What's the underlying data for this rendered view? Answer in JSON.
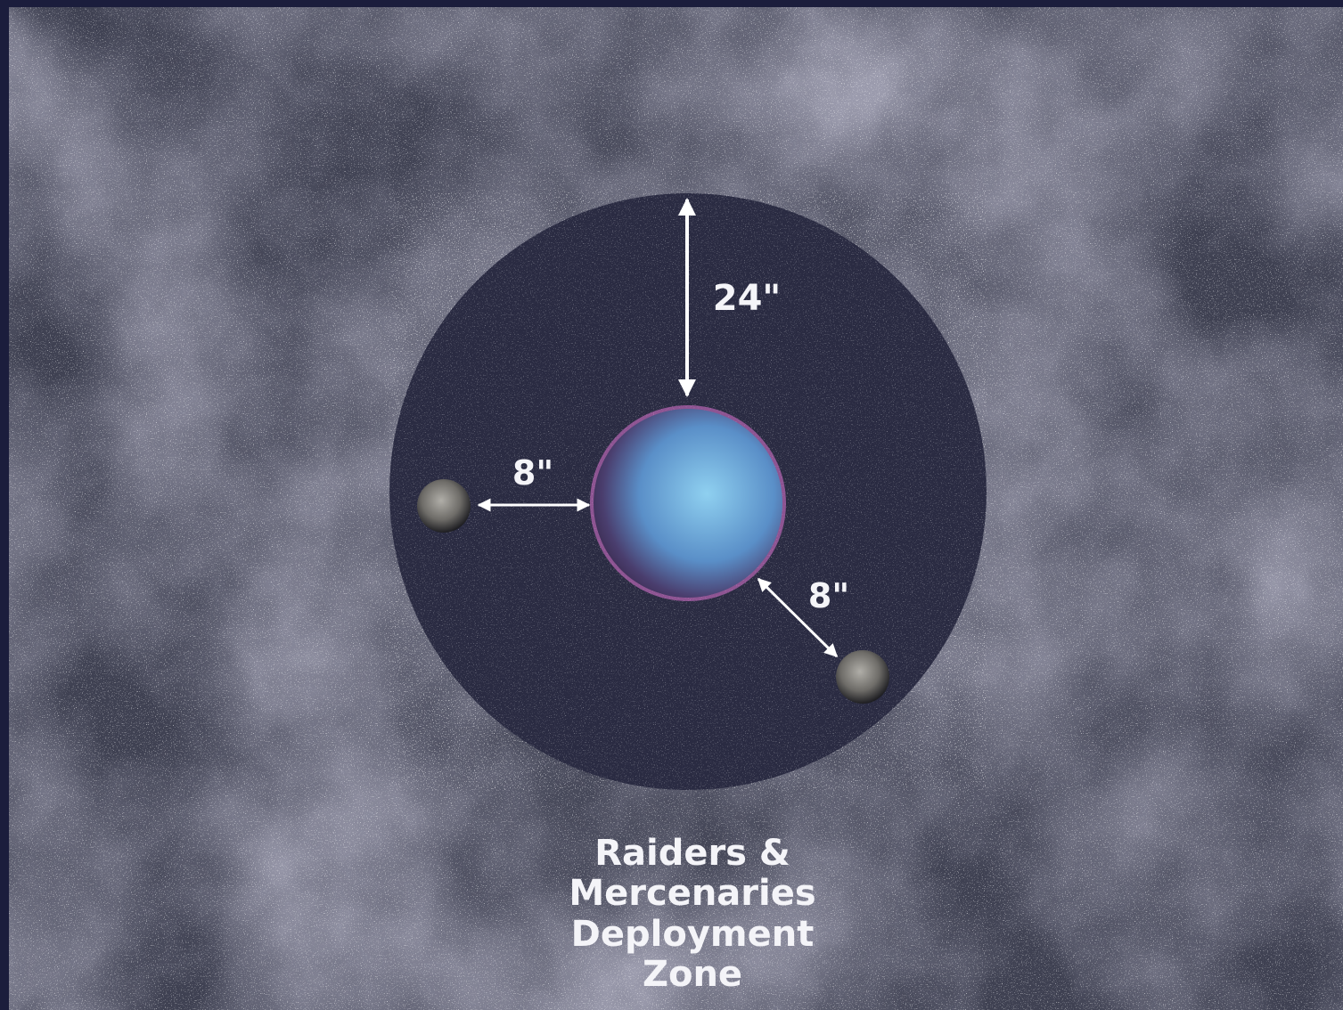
{
  "distances": {
    "top": "24\"",
    "left": "8\"",
    "right": "8\""
  },
  "zone": {
    "lines": [
      "Raiders &",
      "Mercenaries",
      "Deployment",
      "Zone"
    ]
  }
}
